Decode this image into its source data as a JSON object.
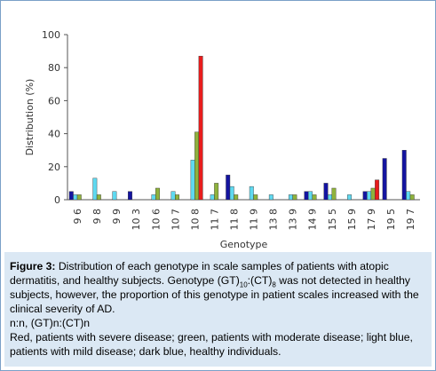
{
  "chart_data": {
    "type": "bar",
    "xlabel": "Genotype",
    "ylabel": "Distribution (%)",
    "ylim": [
      0,
      100
    ],
    "yticks": [
      0,
      20,
      40,
      60,
      80,
      100
    ],
    "categories": [
      "9 6",
      "9 8",
      "9 9",
      "10 3",
      "10 6",
      "10 7",
      "10 8",
      "11 7",
      "11 8",
      "11 9",
      "13 8",
      "13 9",
      "14 9",
      "15 5",
      "15 9",
      "17 9",
      "19 5",
      "19 7"
    ],
    "series": [
      {
        "name": "dark blue",
        "color": "#1414a0",
        "values": [
          5,
          0,
          0,
          5,
          0,
          0,
          0,
          0,
          15,
          0,
          0,
          0,
          5,
          10,
          0,
          5,
          25,
          30
        ]
      },
      {
        "name": "light blue",
        "color": "#5fd9f0",
        "values": [
          3,
          13,
          5,
          0,
          3,
          5,
          24,
          3,
          8,
          8,
          3,
          3,
          5,
          3,
          3,
          5,
          0,
          5
        ]
      },
      {
        "name": "green",
        "color": "#8fb23c",
        "values": [
          3,
          3,
          0,
          0,
          7,
          3,
          41,
          10,
          3,
          3,
          0,
          3,
          3,
          7,
          0,
          7,
          0,
          3
        ]
      },
      {
        "name": "red",
        "color": "#e81c1c",
        "values": [
          0,
          0,
          0,
          0,
          0,
          0,
          87,
          0,
          0,
          0,
          0,
          0,
          0,
          0,
          0,
          12,
          0,
          0
        ]
      }
    ]
  },
  "caption": {
    "label": "Figure 3:",
    "part1": " Distribution of each genotype in scale samples of patients with atopic dermatitis, and healthy subjects. Genotype (GT)",
    "sub1": "10",
    "part2": ":(CT)",
    "sub2": "8",
    "part3": " was not detected in healthy subjects, however, the proportion of this genotype in patient scales increased with the clinical severity of AD.",
    "line2": "n:n, (GT)n:(CT)n",
    "line3": "Red, patients with severe disease; green, patients with moderate disease; light blue, patients with mild disease; dark blue, healthy individuals."
  }
}
